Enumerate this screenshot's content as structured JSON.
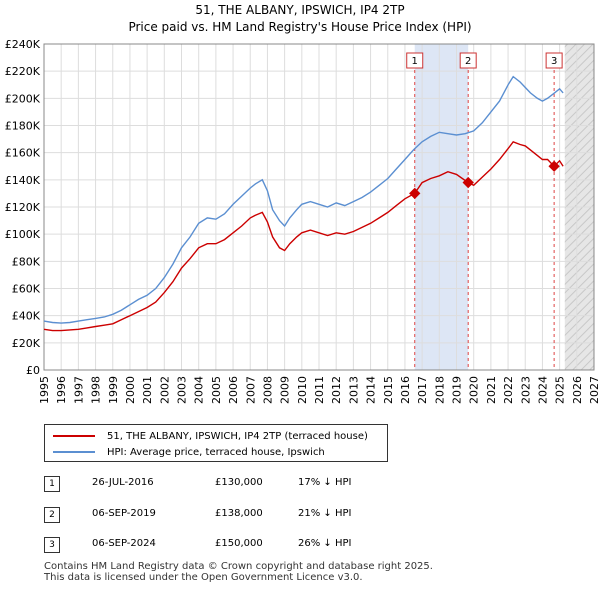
{
  "title_line1": "51, THE ALBANY, IPSWICH, IP4 2TP",
  "title_line2": "Price paid vs. HM Land Registry's House Price Index (HPI)",
  "legend": {
    "property_label": "51, THE ALBANY, IPSWICH, IP4 2TP (terraced house)",
    "hpi_label": "HPI: Average price, terraced house, Ipswich"
  },
  "transactions": [
    {
      "num": "1",
      "date": "26-JUL-2016",
      "price": "£130,000",
      "hpi_diff": "17% ↓ HPI"
    },
    {
      "num": "2",
      "date": "06-SEP-2019",
      "price": "£138,000",
      "hpi_diff": "21% ↓ HPI"
    },
    {
      "num": "3",
      "date": "06-SEP-2024",
      "price": "£150,000",
      "hpi_diff": "26% ↓ HPI"
    }
  ],
  "footer_line1": "Contains HM Land Registry data © Crown copyright and database right 2025.",
  "footer_line2": "This data is licensed under the Open Government Licence v3.0.",
  "chart_data": {
    "type": "line",
    "title": "51, THE ALBANY, IPSWICH, IP4 2TP",
    "subtitle": "Price paid vs. HM Land Registry's House Price Index (HPI)",
    "xlabel": "",
    "ylabel": "",
    "xlim": [
      1995,
      2027
    ],
    "ylim": [
      0,
      240000
    ],
    "x_ticks": [
      1995,
      1996,
      1997,
      1998,
      1999,
      2000,
      2001,
      2002,
      2003,
      2004,
      2005,
      2006,
      2007,
      2008,
      2009,
      2010,
      2011,
      2012,
      2013,
      2014,
      2015,
      2016,
      2017,
      2018,
      2019,
      2020,
      2021,
      2022,
      2023,
      2024,
      2025,
      2026,
      2027
    ],
    "y_ticks": [
      0,
      20000,
      40000,
      60000,
      80000,
      100000,
      120000,
      140000,
      160000,
      180000,
      200000,
      220000,
      240000
    ],
    "y_tick_labels": [
      "£0",
      "£20K",
      "£40K",
      "£60K",
      "£80K",
      "£100K",
      "£120K",
      "£140K",
      "£160K",
      "£180K",
      "£200K",
      "£220K",
      "£240K"
    ],
    "grid": true,
    "colors": {
      "property": "#cc0000",
      "hpi": "#5b8fd1",
      "shade": "#dde6f5",
      "marker_line": "#dd4444"
    },
    "shaded_range": [
      2016.57,
      2019.68
    ],
    "future_from": 2025.3,
    "markers": [
      {
        "label": "1",
        "x": 2016.57,
        "y": 130000
      },
      {
        "label": "2",
        "x": 2019.68,
        "y": 138000
      },
      {
        "label": "3",
        "x": 2024.68,
        "y": 150000
      }
    ],
    "series": [
      {
        "name": "HPI: Average price, terraced house, Ipswich",
        "x": [
          1995,
          1995.5,
          1996,
          1996.5,
          1997,
          1997.5,
          1998,
          1998.5,
          1999,
          1999.5,
          2000,
          2000.5,
          2001,
          2001.5,
          2002,
          2002.5,
          2003,
          2003.5,
          2004,
          2004.5,
          2005,
          2005.5,
          2006,
          2006.5,
          2007,
          2007.3,
          2007.7,
          2008,
          2008.3,
          2008.7,
          2009,
          2009.3,
          2009.7,
          2010,
          2010.5,
          2011,
          2011.5,
          2012,
          2012.5,
          2013,
          2013.5,
          2014,
          2014.5,
          2015,
          2015.5,
          2016,
          2016.5,
          2017,
          2017.5,
          2018,
          2018.5,
          2019,
          2019.5,
          2020,
          2020.5,
          2021,
          2021.5,
          2022,
          2022.3,
          2022.7,
          2023,
          2023.3,
          2023.7,
          2024,
          2024.3,
          2024.7,
          2025,
          2025.2
        ],
        "values": [
          36000,
          35000,
          34500,
          35000,
          36000,
          37000,
          38000,
          39000,
          41000,
          44000,
          48000,
          52000,
          55000,
          60000,
          68000,
          78000,
          90000,
          98000,
          108000,
          112000,
          111000,
          115000,
          122000,
          128000,
          134000,
          137000,
          140000,
          132000,
          118000,
          110000,
          106000,
          112000,
          118000,
          122000,
          124000,
          122000,
          120000,
          123000,
          121000,
          124000,
          127000,
          131000,
          136000,
          141000,
          148000,
          155000,
          162000,
          168000,
          172000,
          175000,
          174000,
          173000,
          174000,
          176000,
          182000,
          190000,
          198000,
          210000,
          216000,
          212000,
          208000,
          204000,
          200000,
          198000,
          200000,
          204000,
          207000,
          204000
        ]
      },
      {
        "name": "51, THE ALBANY, IPSWICH, IP4 2TP (terraced house)",
        "x": [
          1995,
          1995.5,
          1996,
          1996.5,
          1997,
          1997.5,
          1998,
          1998.5,
          1999,
          1999.5,
          2000,
          2000.5,
          2001,
          2001.5,
          2002,
          2002.5,
          2003,
          2003.5,
          2004,
          2004.5,
          2005,
          2005.5,
          2006,
          2006.5,
          2007,
          2007.3,
          2007.7,
          2008,
          2008.3,
          2008.7,
          2009,
          2009.3,
          2009.7,
          2010,
          2010.5,
          2011,
          2011.5,
          2012,
          2012.5,
          2013,
          2013.5,
          2014,
          2014.5,
          2015,
          2015.5,
          2016,
          2016.57,
          2017,
          2017.5,
          2018,
          2018.5,
          2019,
          2019.68,
          2020,
          2020.5,
          2021,
          2021.5,
          2022,
          2022.3,
          2022.7,
          2023,
          2023.3,
          2023.7,
          2024,
          2024.3,
          2024.68,
          2025,
          2025.2
        ],
        "values": [
          30000,
          29000,
          29000,
          29500,
          30000,
          31000,
          32000,
          33000,
          34000,
          37000,
          40000,
          43000,
          46000,
          50000,
          57000,
          65000,
          75000,
          82000,
          90000,
          93000,
          93000,
          96000,
          101000,
          106000,
          112000,
          114000,
          116000,
          109000,
          98000,
          90000,
          88000,
          93000,
          98000,
          101000,
          103000,
          101000,
          99000,
          101000,
          100000,
          102000,
          105000,
          108000,
          112000,
          116000,
          121000,
          126000,
          130000,
          138000,
          141000,
          143000,
          146000,
          144000,
          138000,
          136000,
          142000,
          148000,
          155000,
          163000,
          168000,
          166000,
          165000,
          162000,
          158000,
          155000,
          155000,
          150000,
          154000,
          150000
        ]
      }
    ]
  }
}
